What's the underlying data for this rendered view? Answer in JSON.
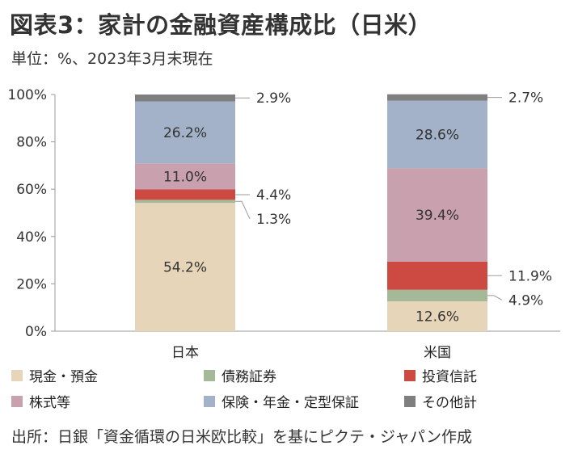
{
  "header": {
    "title": "図表3：家計の金融資産構成比（日米）",
    "subtitle": "単位：%、2023年3月末現在"
  },
  "footer": {
    "source": "出所：日銀「資金循環の日米欧比較」を基にピクテ・ジャパン作成"
  },
  "chart_data": {
    "type": "bar",
    "stacked": true,
    "title": "",
    "xlabel": "",
    "ylabel": "",
    "ylim": [
      0,
      100
    ],
    "yticks": [
      "0%",
      "20%",
      "40%",
      "60%",
      "80%",
      "100%"
    ],
    "categories": [
      "日本",
      "米国"
    ],
    "series": [
      {
        "name": "現金・預金",
        "color": "#e6d5b8",
        "values": [
          54.2,
          12.6
        ],
        "labels": [
          "54.2%",
          "12.6%"
        ]
      },
      {
        "name": "債務証券",
        "color": "#a5b898",
        "values": [
          1.3,
          4.9
        ],
        "labels": [
          "1.3%",
          "4.9%"
        ]
      },
      {
        "name": "投資信託",
        "color": "#cc4a42",
        "values": [
          4.4,
          11.9
        ],
        "labels": [
          "4.4%",
          "11.9%"
        ]
      },
      {
        "name": "株式等",
        "color": "#c9a0ad",
        "values": [
          11.0,
          39.4
        ],
        "labels": [
          "11.0%",
          "39.4%"
        ]
      },
      {
        "name": "保険・年金・定型保証",
        "color": "#a3b2c8",
        "values": [
          26.2,
          28.6
        ],
        "labels": [
          "26.2%",
          "28.6%"
        ]
      },
      {
        "name": "その他計",
        "color": "#7f7f7f",
        "values": [
          2.9,
          2.7
        ],
        "labels": [
          "2.9%",
          "2.7%"
        ]
      }
    ],
    "legend": {
      "position": "bottom",
      "rows": [
        [
          "現金・預金",
          "債務証券",
          "投資信託"
        ],
        [
          "株式等",
          "保険・年金・定型保証",
          "その他計"
        ]
      ]
    }
  }
}
